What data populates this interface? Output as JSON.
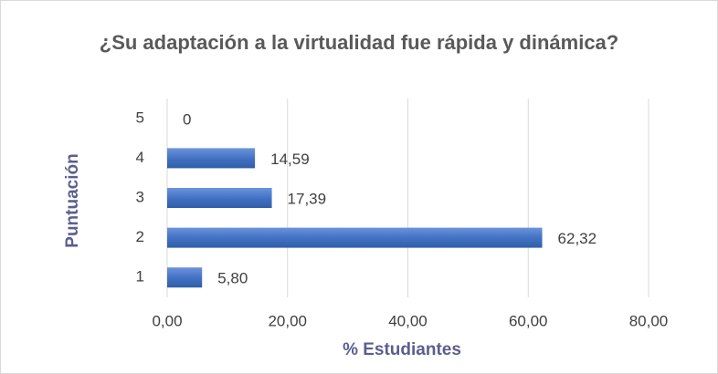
{
  "chart_data": {
    "type": "barh",
    "title": "¿Su adaptación a la virtualidad fue rápida y dinámica?",
    "xlabel": "% Estudiantes",
    "ylabel": "Puntuación",
    "categories": [
      "1",
      "2",
      "3",
      "4",
      "5"
    ],
    "values": [
      5.8,
      62.32,
      17.39,
      14.59,
      0
    ],
    "value_labels": [
      "5,80",
      "62,32",
      "17,39",
      "14,59",
      "0"
    ],
    "color": "#4472c4",
    "xlim": [
      0,
      80
    ],
    "xticks": [
      {
        "value": 0,
        "label": "0,00"
      },
      {
        "value": 20,
        "label": "20,00"
      },
      {
        "value": 40,
        "label": "40,00"
      },
      {
        "value": 60,
        "label": "60,00"
      },
      {
        "value": 80,
        "label": "80,00"
      }
    ],
    "grid": true
  }
}
